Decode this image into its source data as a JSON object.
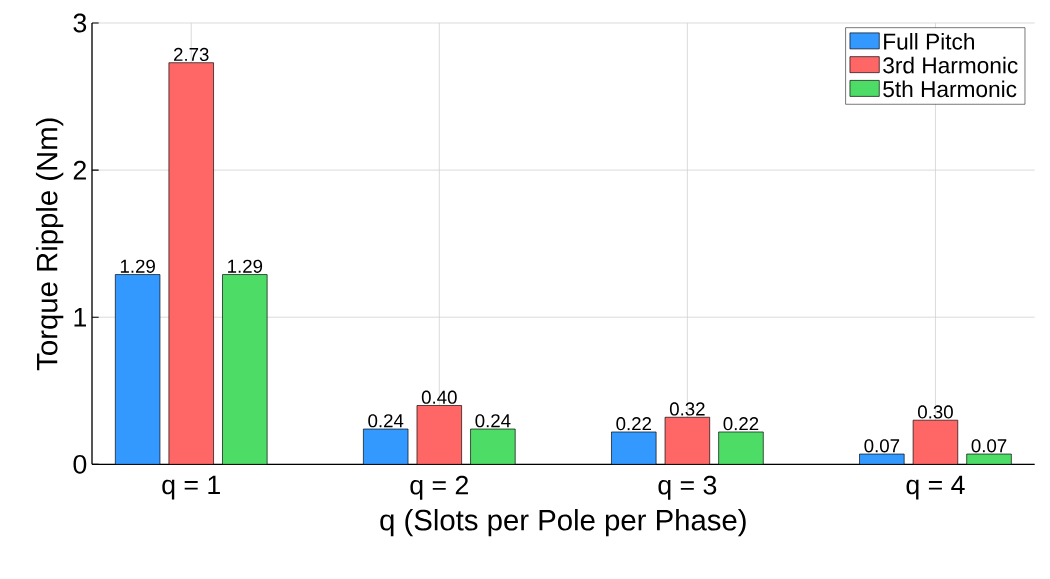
{
  "chart_data": {
    "type": "bar",
    "xlabel": "q (Slots per Pole per Phase)",
    "ylabel": "Torque Ripple (Nm)",
    "categories": [
      "q = 1",
      "q = 2",
      "q = 3",
      "q = 4"
    ],
    "series": [
      {
        "name": "Full Pitch",
        "color": "#3399ff",
        "values": [
          1.29,
          0.24,
          0.22,
          0.07
        ],
        "value_labels": [
          "1.29",
          "0.24",
          "0.22",
          "0.07"
        ]
      },
      {
        "name": "3rd Harmonic",
        "color": "#ff6666",
        "values": [
          2.73,
          0.4,
          0.32,
          0.3
        ],
        "value_labels": [
          "2.73",
          "0.40",
          "0.32",
          "0.30"
        ]
      },
      {
        "name": "5th Harmonic",
        "color": "#4ddd66",
        "values": [
          1.29,
          0.24,
          0.22,
          0.07
        ],
        "value_labels": [
          "1.29",
          "0.24",
          "0.22",
          "0.07"
        ]
      }
    ],
    "ylim": [
      0,
      3
    ],
    "yticks": [
      0,
      1,
      2,
      3
    ],
    "grid": true,
    "legend": "top right"
  }
}
